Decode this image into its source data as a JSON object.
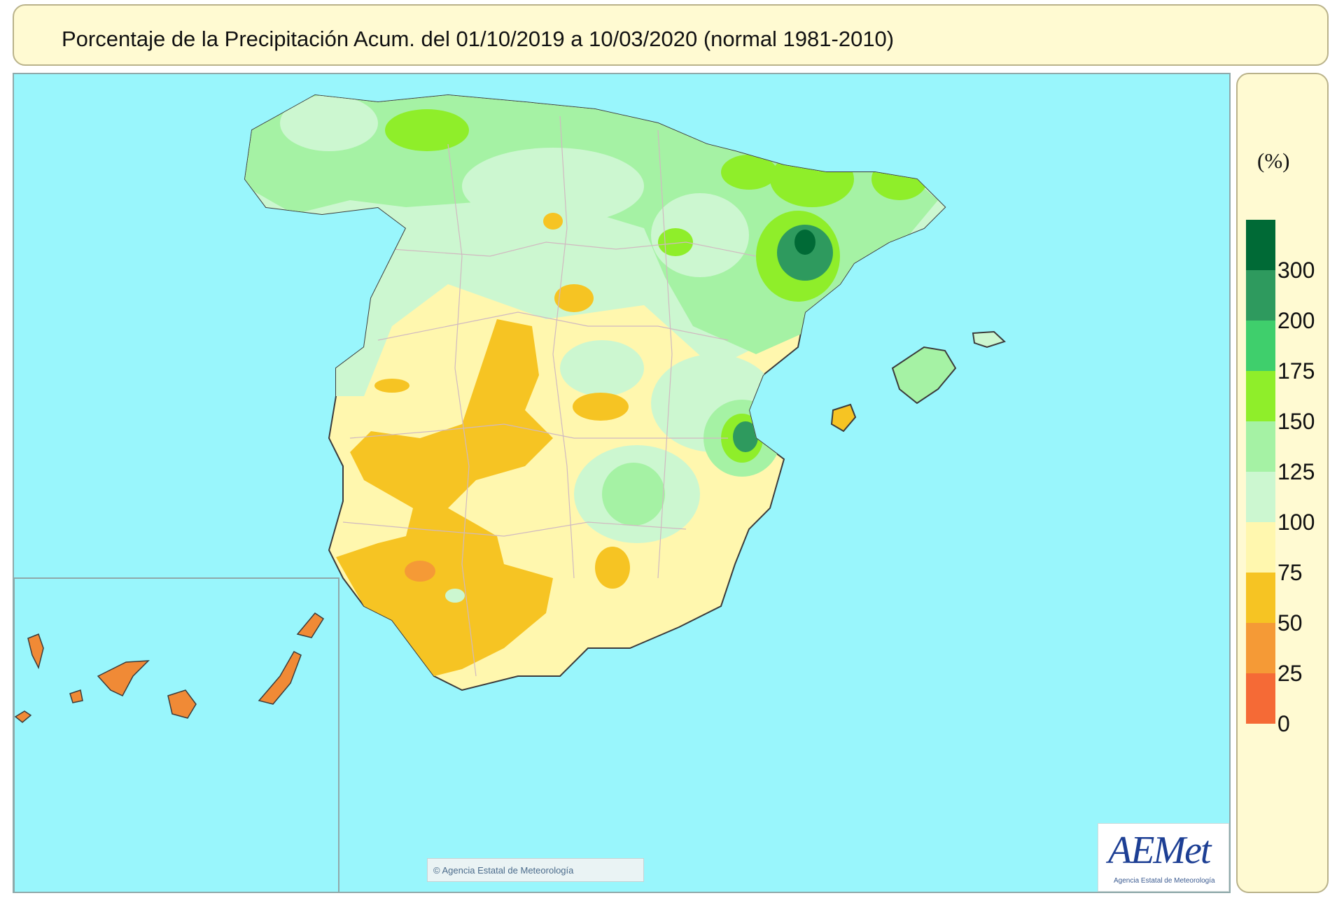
{
  "title": "Porcentaje de la Precipitación Acum. del 01/10/2019 a  10/03/2020  (normal 1981-2010)",
  "legend": {
    "unit": "(%)",
    "thresholds": [
      "300",
      "200",
      "175",
      "150",
      "125",
      "100",
      "75",
      "50",
      "25",
      "0"
    ],
    "colors": [
      "#006a36",
      "#2e9a5e",
      "#3fcf6c",
      "#8fee2a",
      "#a5f2a4",
      "#ccf7d0",
      "#fff7ae",
      "#f6c423",
      "#f59a36",
      "#f56a36"
    ]
  },
  "copyright": "Agencia Estatal de Meteorología",
  "logo": {
    "text": "AEMet",
    "subtitle": "Agencia Estatal de Meteorología"
  },
  "colors": {
    "sea": "#99f6fc",
    "panel": "#fffad2"
  }
}
